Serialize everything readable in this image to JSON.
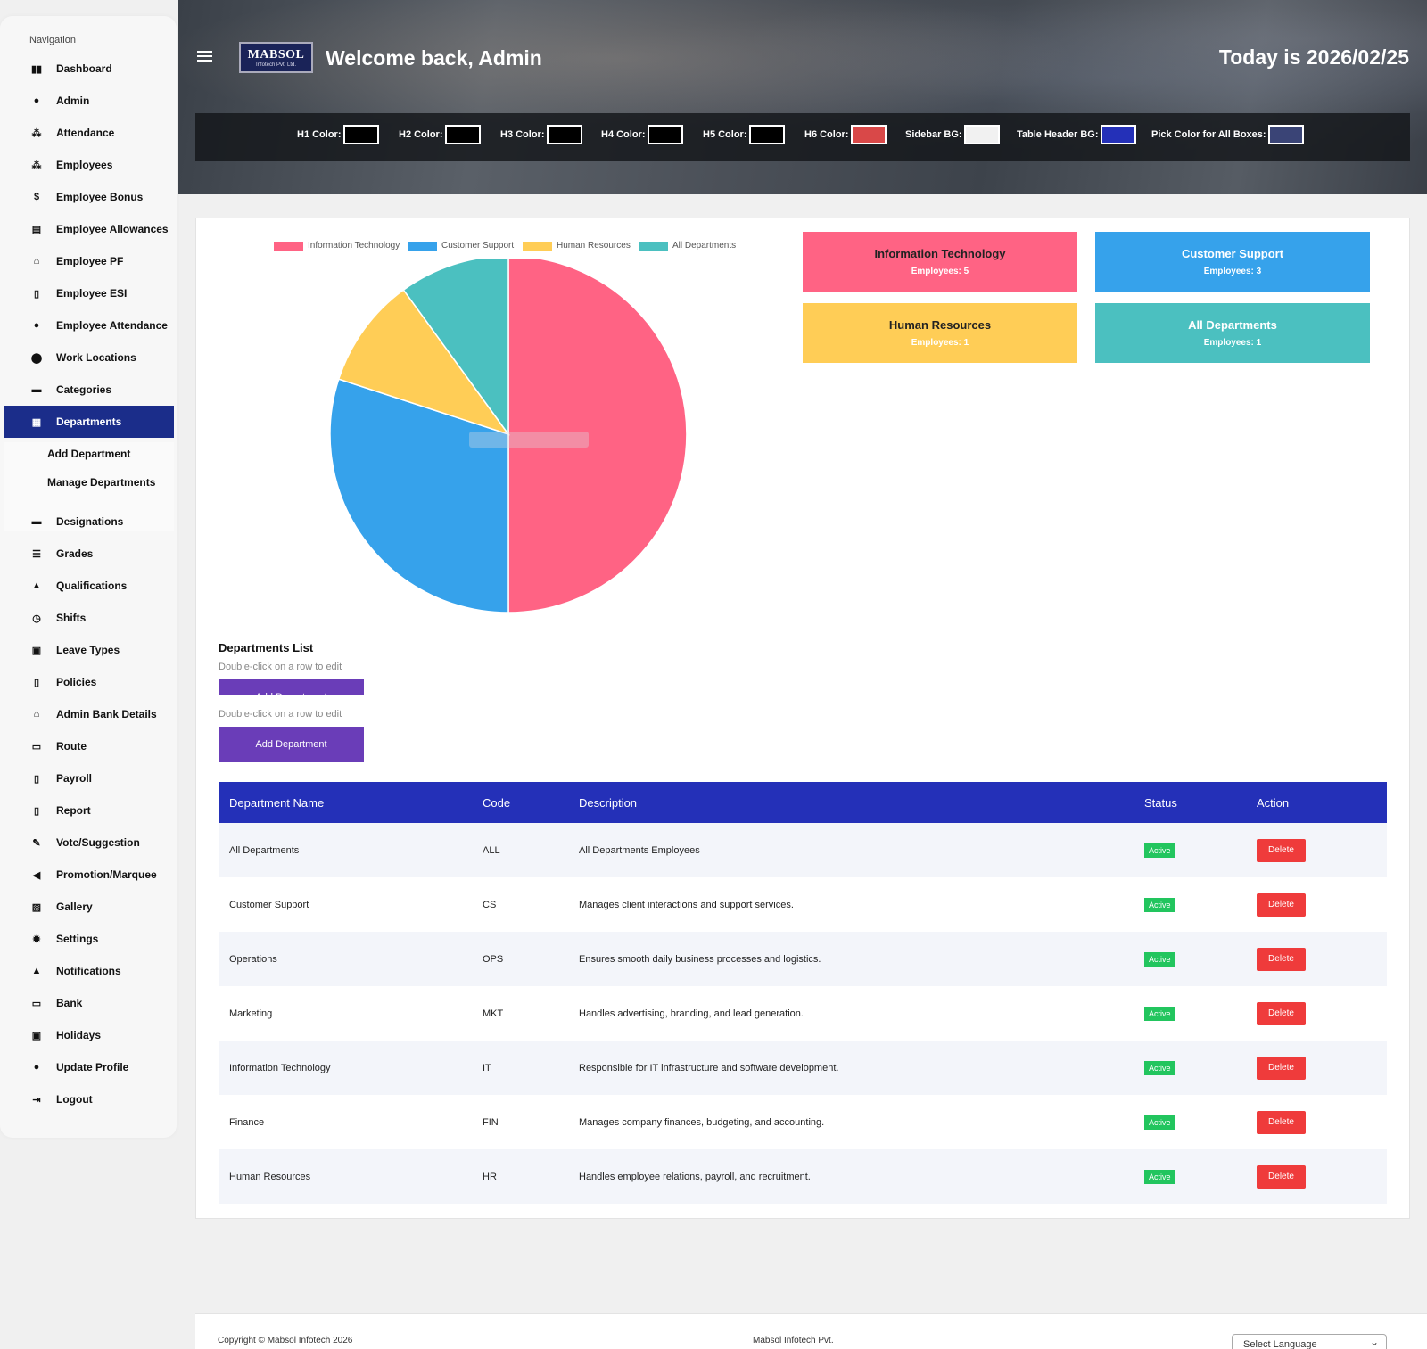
{
  "sidebar": {
    "title": "Navigation",
    "items": [
      {
        "label": "Dashboard",
        "icon": "dashboard-icon",
        "glyph": "▮▮"
      },
      {
        "label": "Admin",
        "icon": "user-icon",
        "glyph": "●"
      },
      {
        "label": "Attendance",
        "icon": "users-icon",
        "glyph": "⁂"
      },
      {
        "label": "Employees",
        "icon": "users-icon",
        "glyph": "⁂"
      },
      {
        "label": "Employee Bonus",
        "icon": "dollar-icon",
        "glyph": "$"
      },
      {
        "label": "Employee Allowances",
        "icon": "list-icon",
        "glyph": "▤"
      },
      {
        "label": "Employee PF",
        "icon": "bank-icon",
        "glyph": "⌂"
      },
      {
        "label": "Employee ESI",
        "icon": "file-icon",
        "glyph": "▯"
      },
      {
        "label": "Employee Attendance",
        "icon": "user-check-icon",
        "glyph": "●"
      },
      {
        "label": "Work Locations",
        "icon": "location-pin-icon",
        "glyph": "⬤"
      },
      {
        "label": "Categories",
        "icon": "folder-icon",
        "glyph": "▬"
      },
      {
        "label": "Departments",
        "icon": "building-icon",
        "glyph": "▦"
      }
    ],
    "sub_items": [
      "Add Department",
      "Manage Departments"
    ],
    "items_after": [
      {
        "label": "Designations",
        "icon": "briefcase-icon",
        "glyph": "▬"
      },
      {
        "label": "Grades",
        "icon": "list-icon",
        "glyph": "☰"
      },
      {
        "label": "Qualifications",
        "icon": "graduation-cap-icon",
        "glyph": "▲"
      },
      {
        "label": "Shifts",
        "icon": "clock-icon",
        "glyph": "◷"
      },
      {
        "label": "Leave Types",
        "icon": "calendar-icon",
        "glyph": "▣"
      },
      {
        "label": "Policies",
        "icon": "file-icon",
        "glyph": "▯"
      },
      {
        "label": "Admin Bank Details",
        "icon": "bank-icon",
        "glyph": "⌂"
      },
      {
        "label": "Route",
        "icon": "bus-icon",
        "glyph": "▭"
      },
      {
        "label": "Payroll",
        "icon": "file-invoice-icon",
        "glyph": "▯"
      },
      {
        "label": "Report",
        "icon": "report-icon",
        "glyph": "▯"
      },
      {
        "label": "Vote/Suggestion",
        "icon": "vote-icon",
        "glyph": "✎"
      },
      {
        "label": "Promotion/Marquee",
        "icon": "megaphone-icon",
        "glyph": "◀"
      },
      {
        "label": "Gallery",
        "icon": "image-icon",
        "glyph": "▨"
      },
      {
        "label": "Settings",
        "icon": "gear-icon",
        "glyph": "✹"
      },
      {
        "label": "Notifications",
        "icon": "bell-icon",
        "glyph": "▲"
      },
      {
        "label": "Bank",
        "icon": "money-icon",
        "glyph": "▭"
      },
      {
        "label": "Holidays",
        "icon": "calendar-icon",
        "glyph": "▣"
      },
      {
        "label": "Update Profile",
        "icon": "user-icon",
        "glyph": "●"
      },
      {
        "label": "Logout",
        "icon": "logout-icon",
        "glyph": "⇥"
      }
    ]
  },
  "header": {
    "logo_line1": "MABSOL",
    "logo_line2": "Infotech Pvt. Ltd.",
    "welcome": "Welcome back, Admin",
    "today": "Today is 2026/02/25",
    "color_pickers": [
      {
        "label": "H1 Color:",
        "color": "#000000"
      },
      {
        "label": "H2 Color:",
        "color": "#000000"
      },
      {
        "label": "H3 Color:",
        "color": "#000000"
      },
      {
        "label": "H4 Color:",
        "color": "#000000"
      },
      {
        "label": "H5 Color:",
        "color": "#000000"
      },
      {
        "label": "H6 Color:",
        "color": "#d94848"
      },
      {
        "label": "Sidebar BG:",
        "color": "#f1f1f1"
      },
      {
        "label": "Table Header BG:",
        "color": "#2430b8"
      },
      {
        "label": "Pick Color for All Boxes:",
        "color": "#3a4476"
      }
    ]
  },
  "chart_data": {
    "type": "pie",
    "categories": [
      "Information Technology",
      "Customer Support",
      "Human Resources",
      "All Departments"
    ],
    "values": [
      5,
      3,
      1,
      1
    ],
    "colors": [
      "#ff6384",
      "#36a2eb",
      "#ffcd56",
      "#4bc0c0"
    ],
    "legend_position": "top"
  },
  "dept_boxes": [
    {
      "name": "Information Technology",
      "employees_label": "Employees: 5",
      "color": "#ff6384"
    },
    {
      "name": "Customer Support",
      "employees_label": "Employees: 3",
      "color": "#36a2eb"
    },
    {
      "name": "Human Resources",
      "employees_label": "Employees: 1",
      "color": "#ffcd56"
    },
    {
      "name": "All Departments",
      "employees_label": "Employees: 1",
      "color": "#4bc0c0"
    }
  ],
  "list": {
    "title": "Departments List",
    "hint": "Double-click on a row to edit",
    "add_button": "Add Department"
  },
  "table": {
    "headers": [
      "Department Name",
      "Code",
      "Description",
      "Status",
      "Action"
    ],
    "rows": [
      {
        "name": "All Departments",
        "code": "ALL",
        "description": "All Departments Employees",
        "status": "Active",
        "action": "Delete"
      },
      {
        "name": "Customer Support",
        "code": "CS",
        "description": "Manages client interactions and support services.",
        "status": "Active",
        "action": "Delete"
      },
      {
        "name": "Operations",
        "code": "OPS",
        "description": "Ensures smooth daily business processes and logistics.",
        "status": "Active",
        "action": "Delete"
      },
      {
        "name": "Marketing",
        "code": "MKT",
        "description": "Handles advertising, branding, and lead generation.",
        "status": "Active",
        "action": "Delete"
      },
      {
        "name": "Information Technology",
        "code": "IT",
        "description": "Responsible for IT infrastructure and software development.",
        "status": "Active",
        "action": "Delete"
      },
      {
        "name": "Finance",
        "code": "FIN",
        "description": "Manages company finances, budgeting, and accounting.",
        "status": "Active",
        "action": "Delete"
      },
      {
        "name": "Human Resources",
        "code": "HR",
        "description": "Handles employee relations, payroll, and recruitment.",
        "status": "Active",
        "action": "Delete"
      }
    ]
  },
  "footer": {
    "copyright": "Copyright © Mabsol Infotech 2026",
    "company": "Mabsol Infotech Pvt.",
    "language": "Select Language"
  }
}
